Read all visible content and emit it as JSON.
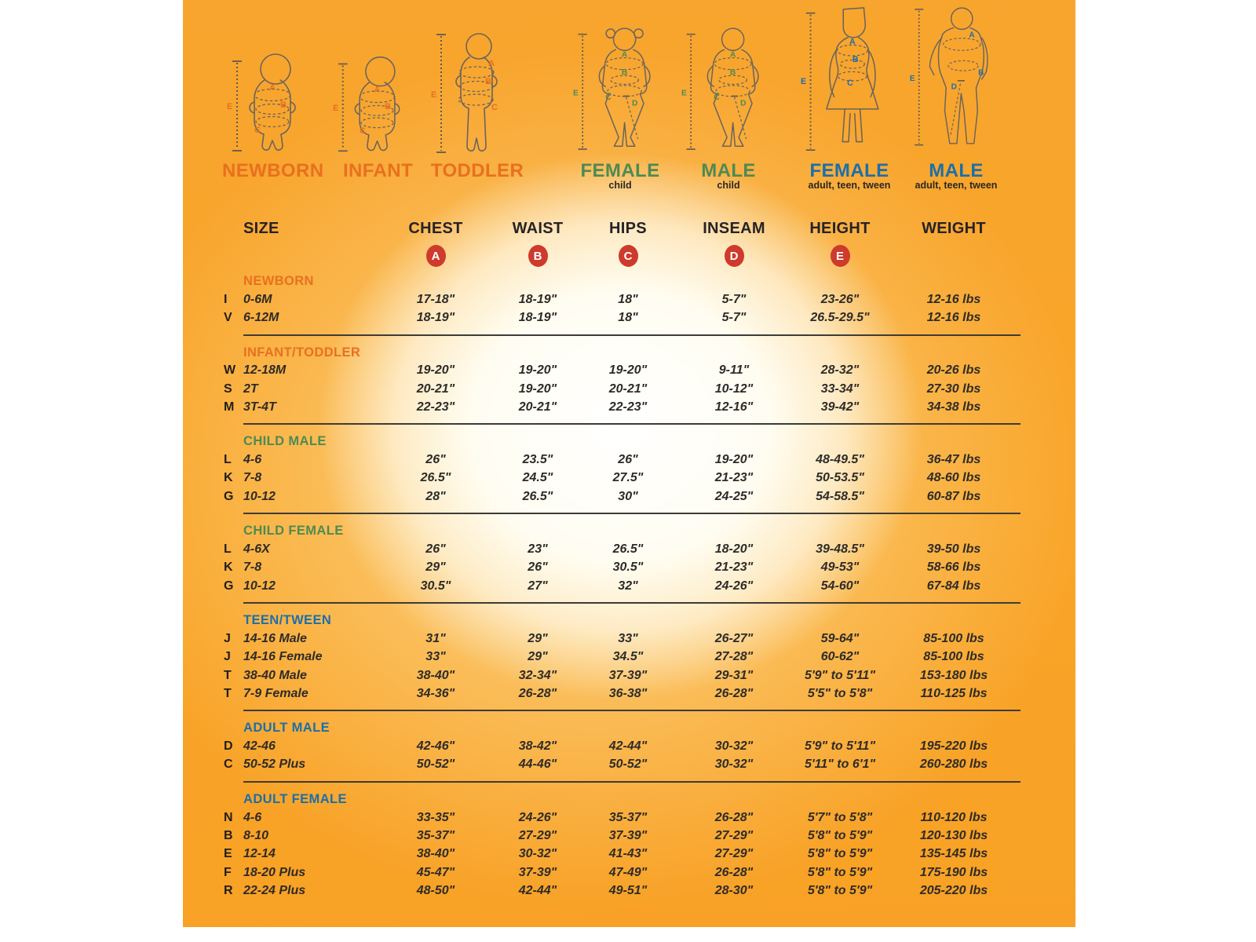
{
  "colors": {
    "orange": "#E8701F",
    "green": "#4E8A52",
    "blue": "#1C6FA8",
    "badge": "#CE3A2B",
    "background_orange": "#F8A528",
    "text_dark": "#2E2B28"
  },
  "figures": [
    {
      "name": "newborn",
      "label": "NEWBORN",
      "sublabel": "",
      "color": "#E8701F",
      "markers": [
        "A",
        "B",
        "C"
      ],
      "height_label": "E"
    },
    {
      "name": "infant",
      "label": "INFANT",
      "sublabel": "",
      "color": "#E8701F",
      "markers": [
        "A",
        "B",
        "C"
      ],
      "height_label": "E"
    },
    {
      "name": "toddler",
      "label": "TODDLER",
      "sublabel": "",
      "color": "#E8701F",
      "markers": [
        "A",
        "B",
        "C"
      ],
      "height_label": "E"
    },
    {
      "name": "female-child",
      "label": "FEMALE",
      "sublabel": "child",
      "color": "#4E8A52",
      "markers": [
        "A",
        "B",
        "C",
        "D"
      ],
      "height_label": "E"
    },
    {
      "name": "male-child",
      "label": "MALE",
      "sublabel": "child",
      "color": "#4E8A52",
      "markers": [
        "A",
        "B",
        "C",
        "D"
      ],
      "height_label": "E"
    },
    {
      "name": "female-adult",
      "label": "FEMALE",
      "sublabel": "adult, teen, tween",
      "color": "#1C6FA8",
      "markers": [
        "A",
        "B",
        "C"
      ],
      "height_label": "E"
    },
    {
      "name": "male-adult",
      "label": "MALE",
      "sublabel": "adult, teen, tween",
      "color": "#1C6FA8",
      "markers": [
        "A",
        "B",
        "D"
      ],
      "height_label": "E"
    }
  ],
  "table": {
    "columns": [
      "SIZE",
      "CHEST",
      "WAIST",
      "HIPS",
      "INSEAM",
      "HEIGHT",
      "WEIGHT"
    ],
    "badges": [
      "A",
      "B",
      "C",
      "D",
      "E"
    ],
    "sections": [
      {
        "title": "NEWBORN",
        "color": "#E8701F",
        "rows": [
          {
            "code": "I",
            "size": "0-6M",
            "chest": "17-18\"",
            "waist": "18-19\"",
            "hips": "18\"",
            "inseam": "5-7\"",
            "height": "23-26\"",
            "weight": "12-16 lbs"
          },
          {
            "code": "V",
            "size": "6-12M",
            "chest": "18-19\"",
            "waist": "18-19\"",
            "hips": "18\"",
            "inseam": "5-7\"",
            "height": "26.5-29.5\"",
            "weight": "12-16 lbs"
          }
        ]
      },
      {
        "title": "INFANT/TODDLER",
        "color": "#E8701F",
        "rows": [
          {
            "code": "W",
            "size": "12-18M",
            "chest": "19-20\"",
            "waist": "19-20\"",
            "hips": "19-20\"",
            "inseam": "9-11\"",
            "height": "28-32\"",
            "weight": "20-26 lbs"
          },
          {
            "code": "S",
            "size": "2T",
            "chest": "20-21\"",
            "waist": "19-20\"",
            "hips": "20-21\"",
            "inseam": "10-12\"",
            "height": "33-34\"",
            "weight": "27-30 lbs"
          },
          {
            "code": "M",
            "size": "3T-4T",
            "chest": "22-23\"",
            "waist": "20-21\"",
            "hips": "22-23\"",
            "inseam": "12-16\"",
            "height": "39-42\"",
            "weight": "34-38 lbs"
          }
        ]
      },
      {
        "title": "CHILD MALE",
        "color": "#4E8A52",
        "rows": [
          {
            "code": "L",
            "size": "4-6",
            "chest": "26\"",
            "waist": "23.5\"",
            "hips": "26\"",
            "inseam": "19-20\"",
            "height": "48-49.5\"",
            "weight": "36-47 lbs"
          },
          {
            "code": "K",
            "size": "7-8",
            "chest": "26.5\"",
            "waist": "24.5\"",
            "hips": "27.5\"",
            "inseam": "21-23\"",
            "height": "50-53.5\"",
            "weight": "48-60 lbs"
          },
          {
            "code": "G",
            "size": "10-12",
            "chest": "28\"",
            "waist": "26.5\"",
            "hips": "30\"",
            "inseam": "24-25\"",
            "height": "54-58.5\"",
            "weight": "60-87 lbs"
          }
        ]
      },
      {
        "title": "CHILD FEMALE",
        "color": "#4E8A52",
        "rows": [
          {
            "code": "L",
            "size": "4-6X",
            "chest": "26\"",
            "waist": "23\"",
            "hips": "26.5\"",
            "inseam": "18-20\"",
            "height": "39-48.5\"",
            "weight": "39-50 lbs"
          },
          {
            "code": "K",
            "size": "7-8",
            "chest": "29\"",
            "waist": "26\"",
            "hips": "30.5\"",
            "inseam": "21-23\"",
            "height": "49-53\"",
            "weight": "58-66 lbs"
          },
          {
            "code": "G",
            "size": "10-12",
            "chest": "30.5\"",
            "waist": "27\"",
            "hips": "32\"",
            "inseam": "24-26\"",
            "height": "54-60\"",
            "weight": "67-84 lbs"
          }
        ]
      },
      {
        "title": "TEEN/TWEEN",
        "color": "#1C6FA8",
        "rows": [
          {
            "code": "J",
            "size": "14-16 Male",
            "chest": "31\"",
            "waist": "29\"",
            "hips": "33\"",
            "inseam": "26-27\"",
            "height": "59-64\"",
            "weight": "85-100 lbs"
          },
          {
            "code": "J",
            "size": "14-16 Female",
            "chest": "33\"",
            "waist": "29\"",
            "hips": "34.5\"",
            "inseam": "27-28\"",
            "height": "60-62\"",
            "weight": "85-100 lbs"
          },
          {
            "code": "T",
            "size": "38-40 Male",
            "chest": "38-40\"",
            "waist": "32-34\"",
            "hips": "37-39\"",
            "inseam": "29-31\"",
            "height": "5'9\" to 5'11\"",
            "weight": "153-180 lbs"
          },
          {
            "code": "T",
            "size": "7-9 Female",
            "chest": "34-36\"",
            "waist": "26-28\"",
            "hips": "36-38\"",
            "inseam": "26-28\"",
            "height": "5'5\" to 5'8\"",
            "weight": "110-125 lbs"
          }
        ]
      },
      {
        "title": "ADULT MALE",
        "color": "#1C6FA8",
        "rows": [
          {
            "code": "D",
            "size": "42-46",
            "chest": "42-46\"",
            "waist": "38-42\"",
            "hips": "42-44\"",
            "inseam": "30-32\"",
            "height": "5'9\" to 5'11\"",
            "weight": "195-220 lbs"
          },
          {
            "code": "C",
            "size": "50-52 Plus",
            "chest": "50-52\"",
            "waist": "44-46\"",
            "hips": "50-52\"",
            "inseam": "30-32\"",
            "height": "5'11\" to 6'1\"",
            "weight": "260-280 lbs"
          }
        ]
      },
      {
        "title": "ADULT FEMALE",
        "color": "#1C6FA8",
        "rows": [
          {
            "code": "N",
            "size": "4-6",
            "chest": "33-35\"",
            "waist": "24-26\"",
            "hips": "35-37\"",
            "inseam": "26-28\"",
            "height": "5'7\" to 5'8\"",
            "weight": "110-120 lbs"
          },
          {
            "code": "B",
            "size": "8-10",
            "chest": "35-37\"",
            "waist": "27-29\"",
            "hips": "37-39\"",
            "inseam": "27-29\"",
            "height": "5'8\" to 5'9\"",
            "weight": "120-130 lbs"
          },
          {
            "code": "E",
            "size": "12-14",
            "chest": "38-40\"",
            "waist": "30-32\"",
            "hips": "41-43\"",
            "inseam": "27-29\"",
            "height": "5'8\" to 5'9\"",
            "weight": "135-145 lbs"
          },
          {
            "code": "F",
            "size": "18-20 Plus",
            "chest": "45-47\"",
            "waist": "37-39\"",
            "hips": "47-49\"",
            "inseam": "26-28\"",
            "height": "5'8\" to 5'9\"",
            "weight": "175-190 lbs"
          },
          {
            "code": "R",
            "size": "22-24 Plus",
            "chest": "48-50\"",
            "waist": "42-44\"",
            "hips": "49-51\"",
            "inseam": "28-30\"",
            "height": "5'8\" to 5'9\"",
            "weight": "205-220 lbs"
          }
        ]
      }
    ]
  }
}
